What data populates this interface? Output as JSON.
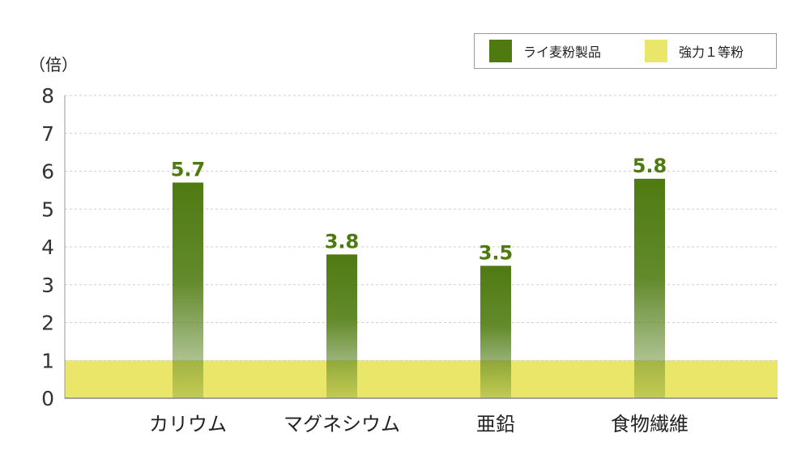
{
  "chart_data": {
    "type": "bar",
    "unit": "（倍）",
    "categories": [
      "カリウム",
      "マグネシウム",
      "亜鉛",
      "食物繊維"
    ],
    "series": [
      {
        "name": "ライ麦粉製品",
        "values": [
          5.7,
          3.8,
          3.5,
          5.8
        ],
        "color": "#4f7a12"
      },
      {
        "name": "強力１等粉",
        "values": [
          1,
          1,
          1,
          1
        ],
        "color": "#e9e66a"
      }
    ],
    "data_labels": [
      "5.7",
      "3.8",
      "3.5",
      "5.8"
    ],
    "y_ticks": [
      "0",
      "1",
      "2",
      "3",
      "4",
      "5",
      "6",
      "7",
      "8"
    ],
    "ylim": [
      0,
      8
    ],
    "grid": true,
    "legend_position": "top-right",
    "label_color": "#4f7a12"
  }
}
